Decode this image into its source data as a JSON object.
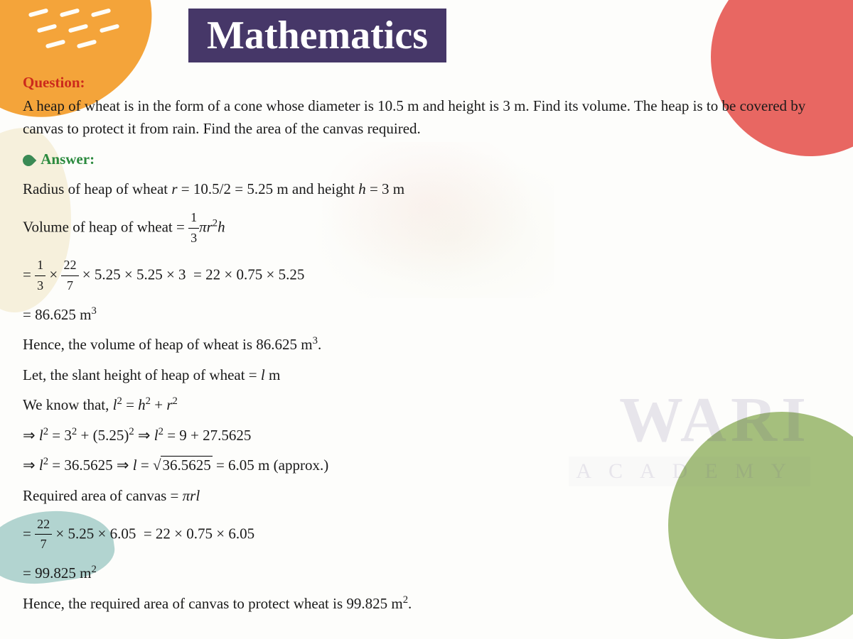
{
  "title": "Mathematics",
  "question_label": "Question:",
  "question_text": "A heap of wheat is in the form of a cone whose diameter is 10.5 m and height is 3 m. Find its volume. The heap is to be covered by canvas to protect it from rain. Find the area of the canvas required.",
  "answer_label": "Answer:",
  "lines": {
    "radius": "Radius of heap of wheat <span class='it'>r</span> = 10.5/2 = 5.25 m and height <span class='it'>h</span> = 3 m",
    "vol_formula": "Volume of heap of wheat = <span class='frac'><span class='n'>1</span><span class='d'>3</span></span><span class='it'>πr</span><sup>2</sup><span class='it'>h</span>",
    "vol_calc": "= <span class='frac'><span class='n'>1</span><span class='d'>3</span></span> × <span class='frac'><span class='n'>22</span><span class='d'>7</span></span> × 5.25 × 5.25 × 3&nbsp; = 22 × 0.75 × 5.25",
    "vol_result": "= 86.625 m<sup>3</sup>",
    "vol_hence": "Hence, the volume of heap of wheat is 86.625 m<sup>3</sup>.",
    "slant_let": "Let, the slant height of heap of wheat = <span class='it'>l</span> m",
    "pythagoras": "We know that, <span class='it'>l</span><sup>2</sup> = <span class='it'>h</span><sup>2</sup> + <span class='it'>r</span><sup>2</sup>",
    "l_calc1": "⇒ <span class='it'>l</span><sup>2</sup> = 3<sup>2</sup> + (5.25)<sup>2</sup> ⇒ <span class='it'>l</span><sup>2</sup> = 9 + 27.5625",
    "l_calc2": "⇒ <span class='it'>l</span><sup>2</sup> = 36.5625 ⇒ <span class='it'>l</span> = <span class='sqrt-sym'></span><span class='sqrt'>36.5625</span> = 6.05 m (approx.)",
    "canvas_formula": "Required area of canvas = <span class='it'>πrl</span>",
    "canvas_calc": "= <span class='frac'><span class='n'>22</span><span class='d'>7</span></span> × 5.25 × 6.05&nbsp; = 22 × 0.75 × 6.05",
    "canvas_result": "= 99.825 m<sup>2</sup>",
    "canvas_hence": "Hence, the required area of canvas to protect wheat is 99.825 m<sup>2</sup>."
  },
  "watermark": {
    "line1": "WARI",
    "line2": "ACADEMY"
  },
  "colors": {
    "title_bg": "#463768",
    "orange": "#f4a43a",
    "red": "#e86762",
    "green": "#a5bf7d",
    "teal": "#8bbfb8",
    "q_color": "#cc2a1c",
    "a_color": "#2b8a3e"
  }
}
